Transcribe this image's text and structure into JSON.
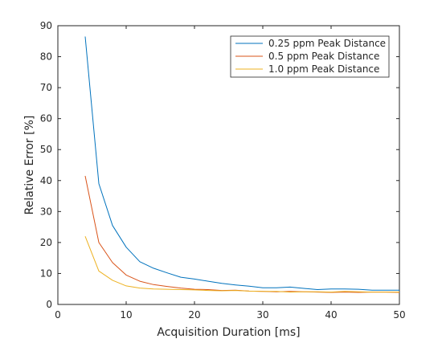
{
  "chart_data": {
    "type": "line",
    "xlabel": "Acquisition Duration [ms]",
    "ylabel": "Relative Error [%]",
    "xlim": [
      0,
      50
    ],
    "ylim": [
      0,
      90
    ],
    "xticks": [
      0,
      10,
      20,
      30,
      40,
      50
    ],
    "yticks": [
      0,
      10,
      20,
      30,
      40,
      50,
      60,
      70,
      80,
      90
    ],
    "grid": false,
    "legend_position": "top-right",
    "x": [
      4,
      6,
      8,
      10,
      12,
      14,
      16,
      18,
      20,
      22,
      24,
      26,
      28,
      30,
      32,
      34,
      36,
      38,
      40,
      42,
      44,
      46,
      48,
      50
    ],
    "series": [
      {
        "name": "0.25 ppm Peak Distance",
        "color": "#0072BD",
        "values": [
          86.5,
          39.0,
          25.5,
          18.5,
          13.8,
          11.7,
          10.2,
          8.8,
          8.2,
          7.5,
          6.8,
          6.3,
          5.9,
          5.4,
          5.4,
          5.6,
          5.2,
          4.8,
          5.0,
          5.0,
          4.9,
          4.6,
          4.6,
          4.6
        ]
      },
      {
        "name": "0.5 ppm Peak Distance",
        "color": "#D95319",
        "values": [
          41.5,
          20.0,
          13.5,
          9.5,
          7.5,
          6.4,
          5.8,
          5.3,
          4.9,
          4.8,
          4.5,
          4.6,
          4.3,
          4.2,
          4.1,
          4.2,
          4.1,
          4.0,
          3.9,
          4.0,
          3.9,
          4.0,
          4.0,
          3.9
        ]
      },
      {
        "name": "1.0 ppm Peak Distance",
        "color": "#EDB120",
        "values": [
          22.0,
          10.8,
          7.8,
          6.0,
          5.3,
          5.0,
          4.9,
          4.8,
          4.7,
          4.5,
          4.4,
          4.5,
          4.3,
          4.2,
          4.2,
          4.0,
          4.1,
          4.1,
          4.0,
          4.2,
          4.1,
          4.0,
          4.0,
          4.0
        ]
      }
    ]
  }
}
